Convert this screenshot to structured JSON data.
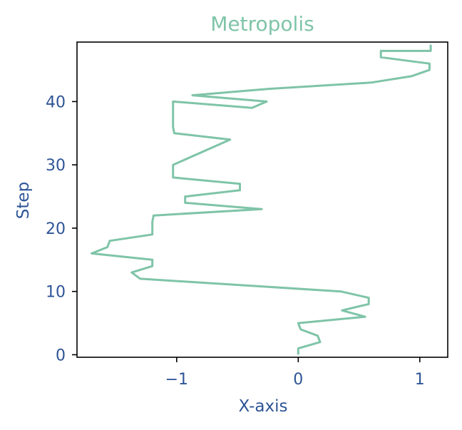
{
  "chart_data": {
    "type": "line",
    "title": "Metropolis",
    "xlabel": "X-axis",
    "ylabel": "Step",
    "xlim": [
      -1.82,
      1.23
    ],
    "ylim": [
      -0.4,
      49.4
    ],
    "x_ticks": [
      -1,
      0,
      1
    ],
    "x_tick_labels": [
      "−1",
      "0",
      "1"
    ],
    "y_ticks": [
      0,
      10,
      20,
      30,
      40
    ],
    "y_tick_labels": [
      "0",
      "10",
      "20",
      "30",
      "40"
    ],
    "grid": false,
    "legend": false,
    "series": [
      {
        "color": "#7fc4a8",
        "x": [
          0.0,
          0.0,
          0.18,
          0.16,
          0.02,
          0.0,
          0.55,
          0.36,
          0.58,
          0.58,
          0.35,
          -1.3,
          -1.37,
          -1.2,
          -1.2,
          -1.7,
          -1.57,
          -1.55,
          -1.2,
          -1.2,
          -1.2,
          -1.19,
          -0.3,
          -0.93,
          -0.93,
          -0.48,
          -0.48,
          -1.03,
          -1.03,
          -1.03,
          -0.56,
          -1.02,
          -1.03,
          -1.03,
          -1.03,
          -1.03,
          -1.03,
          -0.38,
          -0.26,
          -0.87,
          -0.25,
          0.6,
          0.93,
          1.08,
          1.08,
          0.68,
          0.68,
          1.09,
          1.09,
          1.09
        ],
        "y": [
          0,
          1,
          2,
          3,
          4,
          5,
          6,
          7,
          8,
          9,
          10,
          12,
          13,
          14,
          15,
          16,
          17,
          18,
          19,
          20,
          21,
          22,
          23,
          24,
          25,
          26,
          27,
          28,
          29,
          30,
          34,
          35,
          36,
          37,
          38,
          39,
          40,
          39,
          40,
          41,
          42,
          43,
          44,
          45,
          46,
          47,
          48,
          48,
          49,
          49
        ]
      }
    ],
    "colors": {
      "title": "#7fc4a8",
      "labels": "#2e5597",
      "frame": "#000000"
    }
  }
}
